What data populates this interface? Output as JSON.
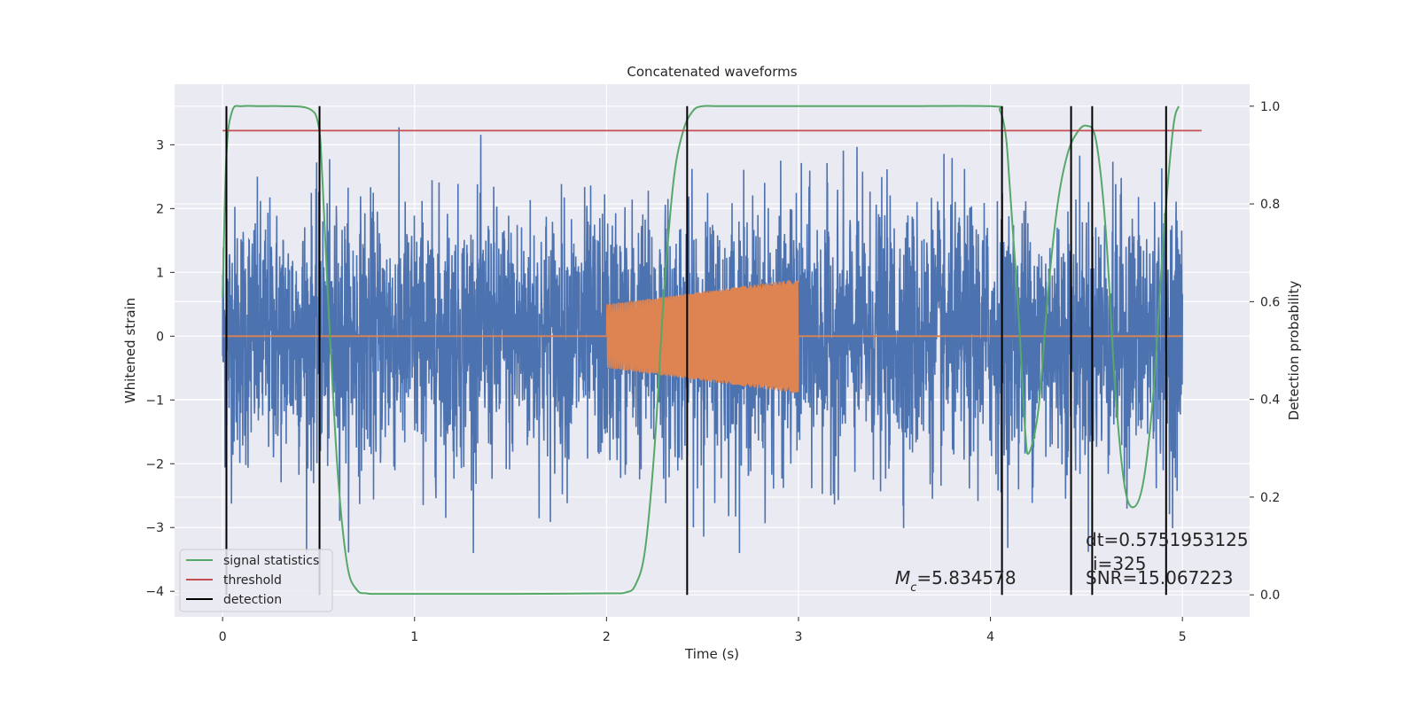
{
  "chart_data": {
    "type": "line",
    "title": "Concatenated waveforms",
    "xlabel": "Time (s)",
    "ylabel": "Whitened strain",
    "y2label": "Detection probability",
    "xlim": [
      -0.25,
      5.35
    ],
    "ylim": [
      -4.4,
      3.95
    ],
    "y2lim": [
      -0.045,
      1.045
    ],
    "xticks": [
      0,
      1,
      2,
      3,
      4,
      5
    ],
    "yticks": [
      -4,
      -3,
      -2,
      -1,
      0,
      1,
      2,
      3
    ],
    "y2ticks": [
      0.0,
      0.2,
      0.4,
      0.6,
      0.8,
      1.0
    ],
    "grid": true,
    "legend_position": "lower-left",
    "colors": {
      "strain": "#4c72b0",
      "template": "#dd8452",
      "signal_statistics": "#55a868",
      "threshold": "#c44e52",
      "detection": "#000000",
      "plot_background": "#eaeaf2"
    },
    "series": [
      {
        "name": "signal statistics",
        "axis": "right",
        "x": [
          0.0,
          0.02,
          0.05,
          0.1,
          0.2,
          0.3,
          0.45,
          0.5,
          0.52,
          0.55,
          0.6,
          0.65,
          0.7,
          0.75,
          0.8,
          1.0,
          1.5,
          2.0,
          2.1,
          2.15,
          2.2,
          2.25,
          2.3,
          2.35,
          2.4,
          2.45,
          2.5,
          2.6,
          3.0,
          3.5,
          4.0,
          4.05,
          4.08,
          4.1,
          4.15,
          4.18,
          4.2,
          4.25,
          4.3,
          4.35,
          4.4,
          4.45,
          4.5,
          4.55,
          4.6,
          4.65,
          4.7,
          4.75,
          4.8,
          4.85,
          4.9,
          4.95,
          4.98
        ],
        "y": [
          0.61,
          0.9,
          0.99,
          1.0,
          1.0,
          1.0,
          0.995,
          0.96,
          0.85,
          0.6,
          0.25,
          0.06,
          0.01,
          0.003,
          0.002,
          0.002,
          0.002,
          0.003,
          0.005,
          0.02,
          0.09,
          0.3,
          0.62,
          0.85,
          0.95,
          0.99,
          1.0,
          1.0,
          1.0,
          1.0,
          1.0,
          0.99,
          0.94,
          0.84,
          0.55,
          0.34,
          0.29,
          0.38,
          0.62,
          0.8,
          0.9,
          0.945,
          0.96,
          0.93,
          0.75,
          0.42,
          0.22,
          0.18,
          0.24,
          0.42,
          0.72,
          0.95,
          1.0
        ]
      },
      {
        "name": "threshold",
        "axis": "right",
        "x": [
          0.0,
          5.1
        ],
        "y": [
          0.95,
          0.95
        ]
      },
      {
        "name": "detection",
        "axis": "right",
        "x": [
          0.02,
          0.505,
          2.42,
          4.06,
          4.42,
          4.53,
          4.915
        ],
        "y_range": [
          0.0,
          1.0
        ]
      }
    ],
    "strain_series": {
      "x_range": [
        0.0,
        5.0
      ],
      "y_extent": [
        -3.4,
        3.5
      ]
    },
    "template_series": {
      "x_range": [
        2.0,
        3.0
      ],
      "amplitude_start": 0.5,
      "amplitude_end": 0.9
    },
    "annotations": [
      {
        "text_prefix": "M",
        "text_sub": "c",
        "text_suffix": "=5.834578"
      },
      {
        "text": "dt=0.5751953125"
      },
      {
        "text": "i=325"
      },
      {
        "text": "SNR=15.067223"
      }
    ],
    "legend": [
      "signal statistics",
      "threshold",
      "detection"
    ]
  }
}
